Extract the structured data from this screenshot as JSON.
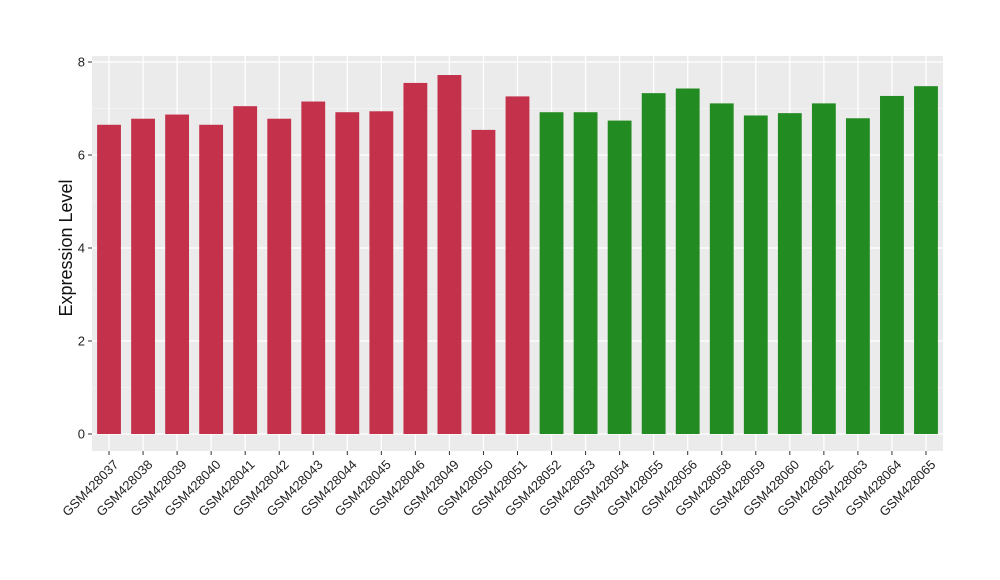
{
  "chart_data": {
    "type": "bar",
    "title": "",
    "xlabel": "",
    "ylabel": "Expression Level",
    "ylim": [
      0,
      8
    ],
    "yticks": [
      "0",
      "2",
      "4",
      "6",
      "8"
    ],
    "grid": true,
    "legend": "none",
    "panel_background": "#ebebeb",
    "categories": [
      "GSM428037",
      "GSM428038",
      "GSM428039",
      "GSM428040",
      "GSM428041",
      "GSM428042",
      "GSM428043",
      "GSM428044",
      "GSM428045",
      "GSM428046",
      "GSM428049",
      "GSM428050",
      "GSM428051",
      "GSM428052",
      "GSM428053",
      "GSM428054",
      "GSM428055",
      "GSM428056",
      "GSM428058",
      "GSM428059",
      "GSM428060",
      "GSM428062",
      "GSM428063",
      "GSM428064",
      "GSM428065"
    ],
    "values": [
      6.65,
      6.78,
      6.87,
      6.65,
      7.05,
      6.78,
      7.15,
      6.92,
      6.94,
      7.55,
      7.72,
      6.54,
      7.26,
      6.92,
      6.92,
      6.74,
      7.33,
      7.43,
      7.11,
      6.85,
      6.9,
      7.11,
      6.79,
      7.27,
      7.48
    ],
    "colors": [
      "#c4314b",
      "#c4314b",
      "#c4314b",
      "#c4314b",
      "#c4314b",
      "#c4314b",
      "#c4314b",
      "#c4314b",
      "#c4314b",
      "#c4314b",
      "#c4314b",
      "#c4314b",
      "#c4314b",
      "#228b22",
      "#228b22",
      "#228b22",
      "#228b22",
      "#228b22",
      "#228b22",
      "#228b22",
      "#228b22",
      "#228b22",
      "#228b22",
      "#228b22",
      "#228b22"
    ]
  }
}
